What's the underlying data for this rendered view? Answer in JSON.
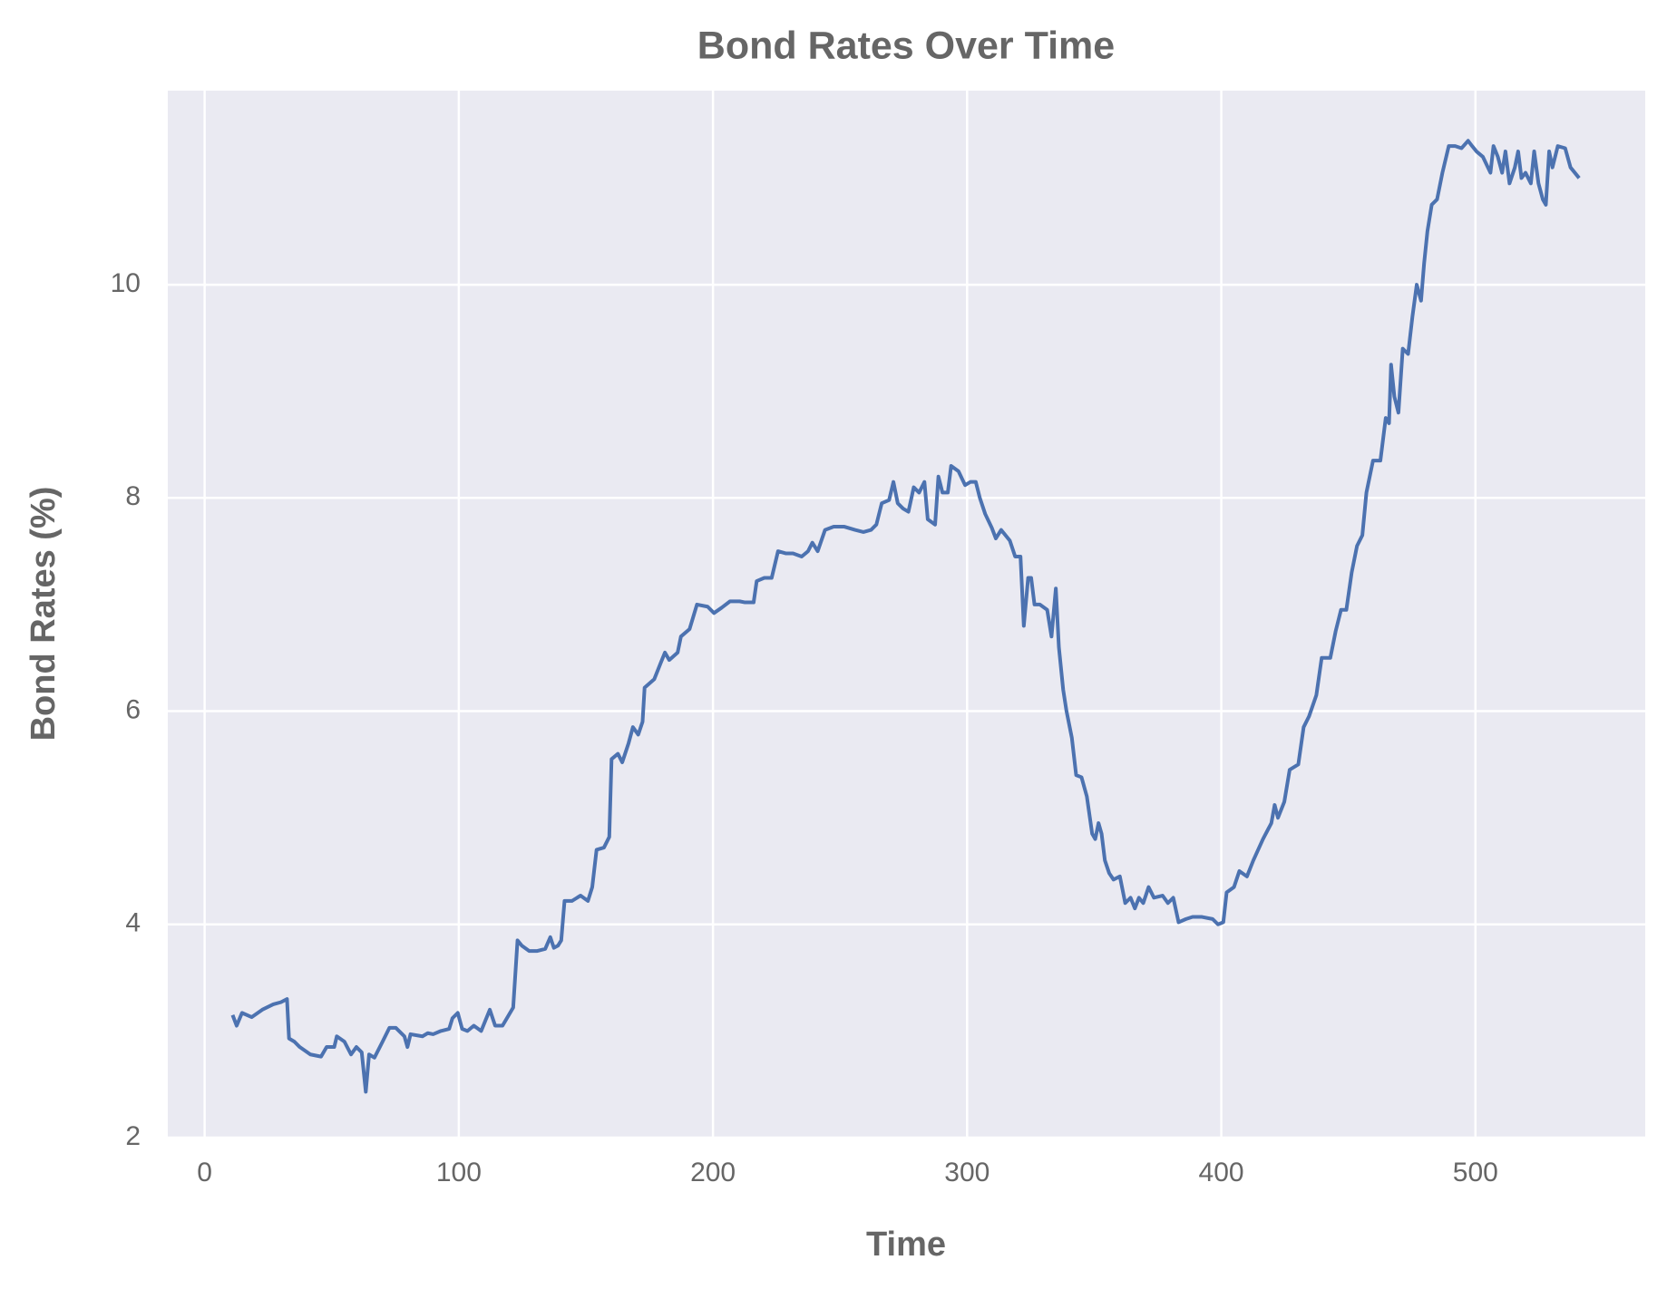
{
  "chart_data": {
    "type": "line",
    "title": "Bond Rates Over Time",
    "x_label": "Time",
    "y_label": "Bond Rates (%)",
    "xlim": [
      -14.5,
      566.8
    ],
    "ylim": [
      2.0,
      11.82
    ],
    "xticks": [
      0,
      100,
      200,
      300,
      400,
      500
    ],
    "yticks": [
      2,
      4,
      6,
      8,
      10
    ],
    "grid": true,
    "series": [
      {
        "name": "Bond Rates",
        "color": "#4c72b0",
        "x": [
          11,
          12.6,
          14.7,
          18.5,
          22.7,
          27,
          30,
          32.4,
          33.2,
          35.3,
          37.4,
          41.6,
          45.8,
          48,
          51,
          52,
          55,
          57.6,
          59.7,
          61.8,
          63.4,
          64.7,
          66.8,
          70,
          72.7,
          75.2,
          78.6,
          79.8,
          81,
          85.7,
          87.8,
          89.9,
          92.9,
          96.2,
          97.5,
          99.6,
          101.3,
          103.4,
          105.9,
          108.8,
          112.2,
          114.3,
          117.2,
          121.4,
          123.1,
          124.8,
          127.7,
          130.7,
          134,
          136,
          137.4,
          139,
          140.3,
          141.6,
          144.5,
          147.9,
          150.8,
          152.5,
          154.2,
          157.1,
          159.2,
          160.1,
          162.6,
          164.3,
          166.8,
          168.5,
          170.6,
          172.3,
          173.1,
          176.9,
          179.4,
          181.1,
          182.8,
          186.1,
          187.4,
          190.8,
          193.7,
          197.9,
          200.4,
          203.4,
          206.7,
          210.5,
          212.6,
          216,
          217.2,
          220.2,
          223.1,
          225.6,
          228.6,
          231.5,
          234.9,
          237.4,
          239.1,
          241.2,
          244.1,
          247.5,
          251.7,
          255.9,
          259.2,
          262.2,
          264.3,
          266.4,
          269.3,
          271,
          272.7,
          274.8,
          276.9,
          279,
          281.1,
          283.2,
          284.5,
          287.4,
          288.7,
          290.3,
          292.4,
          293.7,
          296.6,
          299.2,
          301.3,
          303.4,
          305,
          307.1,
          309.7,
          311.3,
          313.4,
          316.8,
          318.9,
          321,
          322.3,
          324,
          325.2,
          326.5,
          328.6,
          331.5,
          333.2,
          334.9,
          336.1,
          337.8,
          339.1,
          341.2,
          342.9,
          345,
          347.1,
          349.2,
          350.4,
          351.7,
          352.9,
          354.2,
          355.9,
          357.6,
          360.1,
          362.2,
          364.3,
          366,
          367.6,
          369.3,
          371.4,
          373.5,
          376.9,
          379,
          381.1,
          383.2,
          386.1,
          388.7,
          392.4,
          396.6,
          398.7,
          400.8,
          402.1,
          405,
          407.1,
          410.1,
          412.6,
          416.4,
          419.7,
          421,
          422.3,
          424.8,
          426.9,
          430.3,
          432.4,
          434.5,
          437.4,
          439.5,
          442.9,
          445,
          447.1,
          449.2,
          451.3,
          453.4,
          455.5,
          457.1,
          459.7,
          462.6,
          464.7,
          466,
          466.8,
          468.1,
          469.7,
          471.4,
          473.5,
          475.2,
          476.9,
          478.6,
          479.8,
          481.1,
          482.8,
          484.9,
          487,
          489.5,
          492,
          494.5,
          497.1,
          498.7,
          500.4,
          502.9,
          505.9,
          507.1,
          508.8,
          510.5,
          511.8,
          513.4,
          515.5,
          516.8,
          518.1,
          519.7,
          521.8,
          523.1,
          524.8,
          526.5,
          527.7,
          529,
          530.3,
          532.4,
          535.3,
          537.4,
          540.8
        ],
        "values": [
          3.15,
          3.05,
          3.17,
          3.13,
          3.2,
          3.25,
          3.27,
          3.3,
          2.93,
          2.9,
          2.85,
          2.78,
          2.76,
          2.85,
          2.85,
          2.95,
          2.9,
          2.78,
          2.85,
          2.8,
          2.43,
          2.78,
          2.75,
          2.9,
          3.03,
          3.03,
          2.95,
          2.85,
          2.97,
          2.95,
          2.98,
          2.97,
          3.0,
          3.02,
          3.12,
          3.17,
          3.02,
          3.0,
          3.05,
          3.0,
          3.2,
          3.05,
          3.05,
          3.22,
          3.85,
          3.8,
          3.75,
          3.75,
          3.77,
          3.88,
          3.78,
          3.8,
          3.85,
          4.22,
          4.22,
          4.27,
          4.22,
          4.35,
          4.7,
          4.72,
          4.82,
          5.55,
          5.6,
          5.52,
          5.7,
          5.85,
          5.78,
          5.9,
          6.22,
          6.3,
          6.45,
          6.55,
          6.48,
          6.55,
          6.7,
          6.77,
          7.0,
          6.98,
          6.92,
          6.97,
          7.03,
          7.03,
          7.02,
          7.02,
          7.22,
          7.25,
          7.25,
          7.5,
          7.48,
          7.48,
          7.45,
          7.5,
          7.58,
          7.5,
          7.7,
          7.73,
          7.73,
          7.7,
          7.68,
          7.7,
          7.75,
          7.95,
          7.98,
          8.15,
          7.95,
          7.9,
          7.87,
          8.1,
          8.05,
          8.15,
          7.8,
          7.75,
          8.2,
          8.05,
          8.05,
          8.3,
          8.25,
          8.12,
          8.15,
          8.15,
          8.0,
          7.85,
          7.72,
          7.62,
          7.7,
          7.6,
          7.45,
          7.45,
          6.8,
          7.25,
          7.25,
          7.0,
          7.0,
          6.95,
          6.7,
          7.15,
          6.6,
          6.2,
          6.0,
          5.75,
          5.4,
          5.38,
          5.2,
          4.85,
          4.8,
          4.95,
          4.85,
          4.6,
          4.48,
          4.42,
          4.45,
          4.2,
          4.25,
          4.15,
          4.25,
          4.2,
          4.35,
          4.25,
          4.27,
          4.2,
          4.25,
          4.02,
          4.05,
          4.07,
          4.07,
          4.05,
          4.0,
          4.02,
          4.3,
          4.35,
          4.5,
          4.45,
          4.6,
          4.8,
          4.95,
          5.12,
          5.0,
          5.15,
          5.45,
          5.5,
          5.85,
          5.95,
          6.15,
          6.5,
          6.5,
          6.75,
          6.95,
          6.95,
          7.3,
          7.55,
          7.65,
          8.05,
          8.35,
          8.35,
          8.75,
          8.7,
          9.25,
          8.95,
          8.8,
          9.4,
          9.35,
          9.7,
          10.0,
          9.85,
          10.2,
          10.5,
          10.75,
          10.8,
          11.05,
          11.3,
          11.3,
          11.28,
          11.35,
          11.3,
          11.25,
          11.2,
          11.05,
          11.3,
          11.2,
          11.05,
          11.25,
          10.95,
          11.1,
          11.25,
          11.0,
          11.05,
          10.95,
          11.25,
          10.95,
          10.8,
          10.75,
          11.25,
          11.1,
          11.3,
          11.28,
          11.1,
          11.0
        ]
      }
    ]
  }
}
